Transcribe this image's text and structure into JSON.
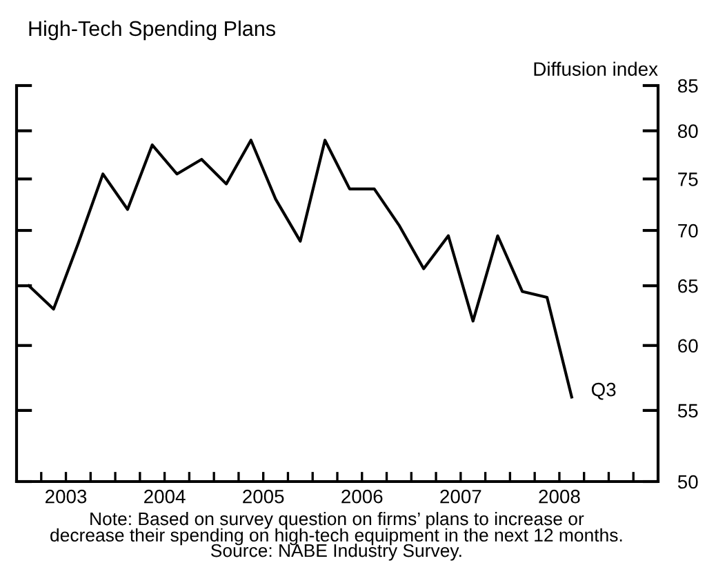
{
  "chart_data": {
    "type": "line",
    "title": "High-Tech Spending Plans",
    "ylabel": "Diffusion index",
    "x": [
      2003.125,
      2003.375,
      2003.625,
      2003.875,
      2004.125,
      2004.375,
      2004.625,
      2004.875,
      2005.125,
      2005.375,
      2005.625,
      2005.875,
      2006.125,
      2006.375,
      2006.625,
      2006.875,
      2007.125,
      2007.375,
      2007.625,
      2007.875,
      2008.125,
      2008.375,
      2008.625
    ],
    "series": [
      {
        "color": "#000000",
        "values": [
          65,
          63,
          68.8,
          75.5,
          72,
          78.5,
          75.5,
          77,
          74.5,
          79,
          73,
          69,
          79,
          74,
          74,
          70.5,
          66.5,
          69.5,
          62,
          69.5,
          64.5,
          64,
          56
        ]
      }
    ],
    "log": true,
    "ylim": [
      50,
      85
    ],
    "yticks": [
      50,
      55,
      60,
      65,
      70,
      75,
      80,
      85
    ],
    "xlim": [
      2003,
      2009.5
    ],
    "xticks": [
      {
        "value": 2003.25,
        "label": null
      },
      {
        "value": 2003.5,
        "label": "2003"
      },
      {
        "value": 2003.75,
        "label": null
      },
      {
        "value": 2004,
        "label": null
      },
      {
        "value": 2004.25,
        "label": null
      },
      {
        "value": 2004.5,
        "label": "2004"
      },
      {
        "value": 2004.75,
        "label": null
      },
      {
        "value": 2005,
        "label": null
      },
      {
        "value": 2005.25,
        "label": null
      },
      {
        "value": 2005.5,
        "label": "2005"
      },
      {
        "value": 2005.75,
        "label": null
      },
      {
        "value": 2006,
        "label": null
      },
      {
        "value": 2006.25,
        "label": null
      },
      {
        "value": 2006.5,
        "label": "2006"
      },
      {
        "value": 2006.75,
        "label": null
      },
      {
        "value": 2007,
        "label": null
      },
      {
        "value": 2007.25,
        "label": null
      },
      {
        "value": 2007.5,
        "label": "2007"
      },
      {
        "value": 2007.75,
        "label": null
      },
      {
        "value": 2008,
        "label": null
      },
      {
        "value": 2008.25,
        "label": null
      },
      {
        "value": 2008.5,
        "label": "2008"
      },
      {
        "value": 2008.75,
        "label": null
      },
      {
        "value": 2009,
        "label": null
      },
      {
        "value": 2009.25,
        "label": null
      }
    ],
    "grid": false,
    "legend": false,
    "marker": "none",
    "line_style": "solid",
    "annotations": [
      {
        "text": "Q3",
        "x": 2008.625,
        "y": 56
      },
      "Note: Based on survey question on firms’ plans to increase or\ndecrease their spending on high-tech equipment in the next 12 months.",
      "Source: NABE Industry Survey."
    ]
  }
}
